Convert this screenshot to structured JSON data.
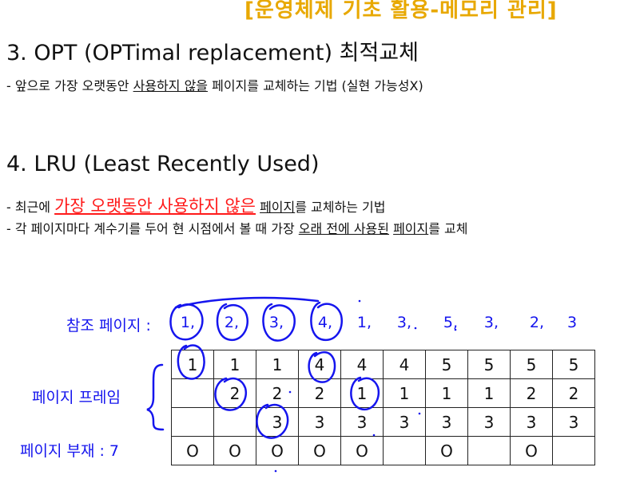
{
  "title": "[운영체제 기초 활용-메모리 관리]",
  "opt": {
    "heading": "3. OPT (OPTimal replacement) 최적교체",
    "bullet_prefix": "- 앞으로 가장 오랫동안 ",
    "bullet_underlined": "사용하지 않을",
    "bullet_suffix": " 페이지를 교체하는 기법 (실현 가능성X)"
  },
  "lru": {
    "heading": "4. LRU (Least Recently Used)",
    "bullet1_prefix": "- 최근에 ",
    "bullet1_red": "가장 오랫동안 사용하지 않은",
    "bullet1_ul": "페이지",
    "bullet1_suffix": "를 교체하는 기법",
    "bullet2_prefix": "- 각 페이지마다 계수기를 두어 현 시점에서 볼 때 가장 ",
    "bullet2_ul1": "오래 전에 사용된",
    "bullet2_mid": " ",
    "bullet2_ul2": "페이지",
    "bullet2_suffix": "를 교체"
  },
  "diagram": {
    "ref_label": "참조 페이지 :",
    "ref_string": [
      "1,",
      "2,",
      "3,",
      "4,",
      "1,",
      "3,",
      "5,",
      "3,",
      "2,",
      "3"
    ],
    "frame_label": "페이지 프레임",
    "fault_label": "페이지 부재 : 7",
    "frames": [
      [
        "1",
        "1",
        "1",
        "4",
        "4",
        "4",
        "5",
        "5",
        "5",
        "5"
      ],
      [
        "",
        "2",
        "2",
        "2",
        "1",
        "1",
        "1",
        "1",
        "2",
        "2"
      ],
      [
        "",
        "",
        "3",
        "3",
        "3",
        "3",
        "3",
        "3",
        "3",
        "3"
      ]
    ],
    "faults": [
      "O",
      "O",
      "O",
      "O",
      "O",
      "",
      "O",
      "",
      "O",
      ""
    ]
  },
  "colors": {
    "title": "#e8a800",
    "handwriting": "#1515ee",
    "emphasis": "#ff1a1a"
  }
}
